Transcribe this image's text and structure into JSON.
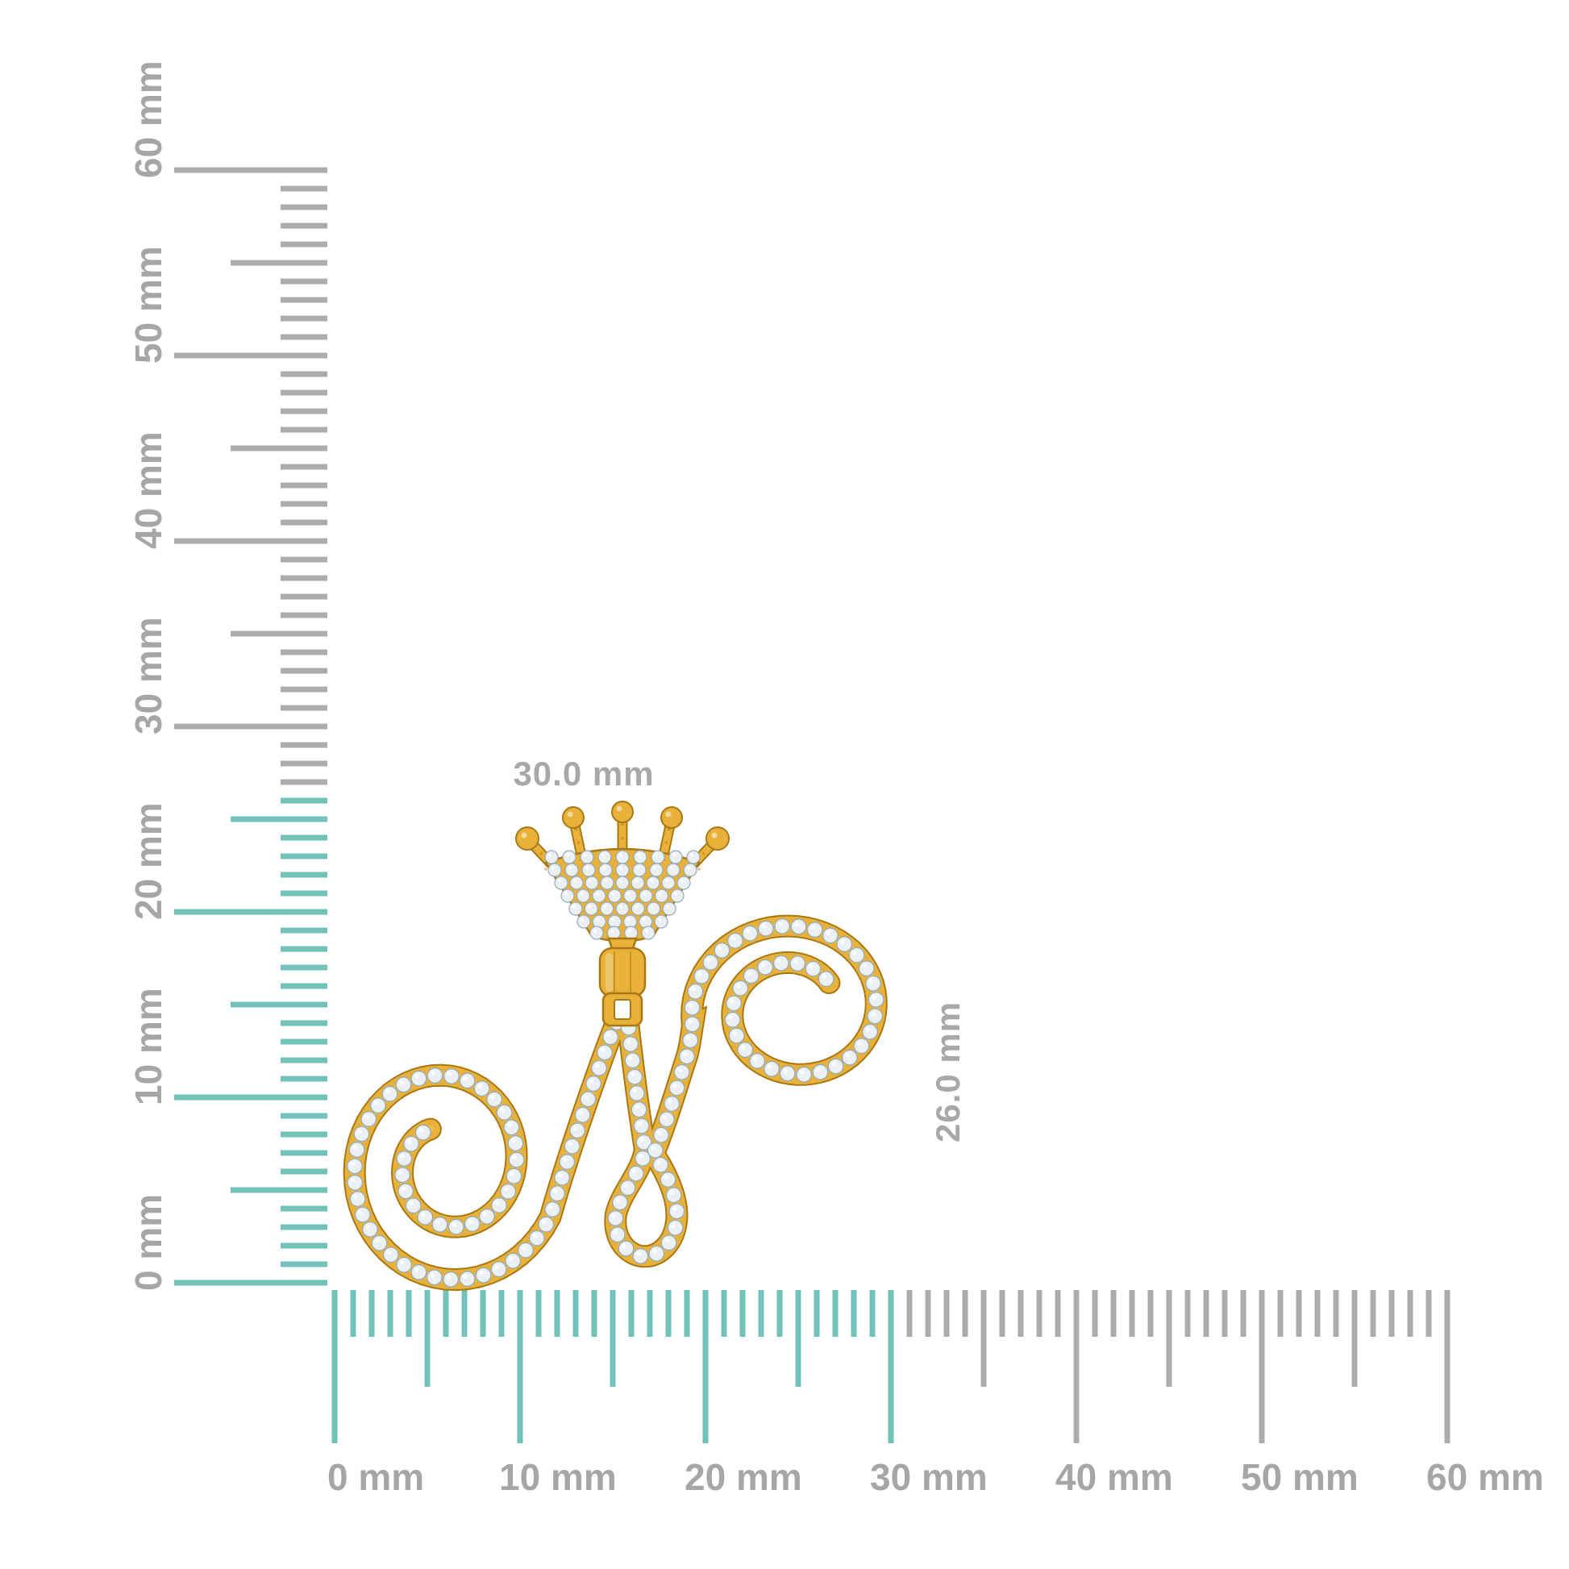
{
  "figure": {
    "description": "Yellow gold diamond pave script letter N pendant with crown bail shown to scale against millimeter rulers",
    "background_color": "#ffffff"
  },
  "dimensions": {
    "width_label": "30.0 mm",
    "height_label": "26.0 mm",
    "label_color": "#a8a8a8"
  },
  "rulers": {
    "unit": "mm",
    "max_mm": 60,
    "minor_step_mm": 1,
    "medium_step_mm": 5,
    "major_step_mm": 10,
    "tick_color": "#acacac",
    "highlight_color": "#72c2b9",
    "label_color": "#a6a6a6",
    "vertical": {
      "labels": [
        "0 mm",
        "10 mm",
        "20 mm",
        "30 mm",
        "40 mm",
        "50 mm",
        "60 mm"
      ],
      "highlight_extent_mm": 26
    },
    "horizontal": {
      "labels": [
        "0 mm",
        "10 mm",
        "20 mm",
        "30 mm",
        "40 mm",
        "50 mm",
        "60 mm"
      ],
      "highlight_extent_mm": 30
    }
  },
  "pendant": {
    "letter": "N",
    "style": "crowned cursive initial with diamond pave",
    "metal_color": "#e7b13a",
    "metal_light": "#f4cd63",
    "metal_dark": "#b8861b",
    "metal_outline": "#aa7812",
    "diamond_color": "#eaf0f4",
    "diamond_edge": "#96a9b5"
  }
}
